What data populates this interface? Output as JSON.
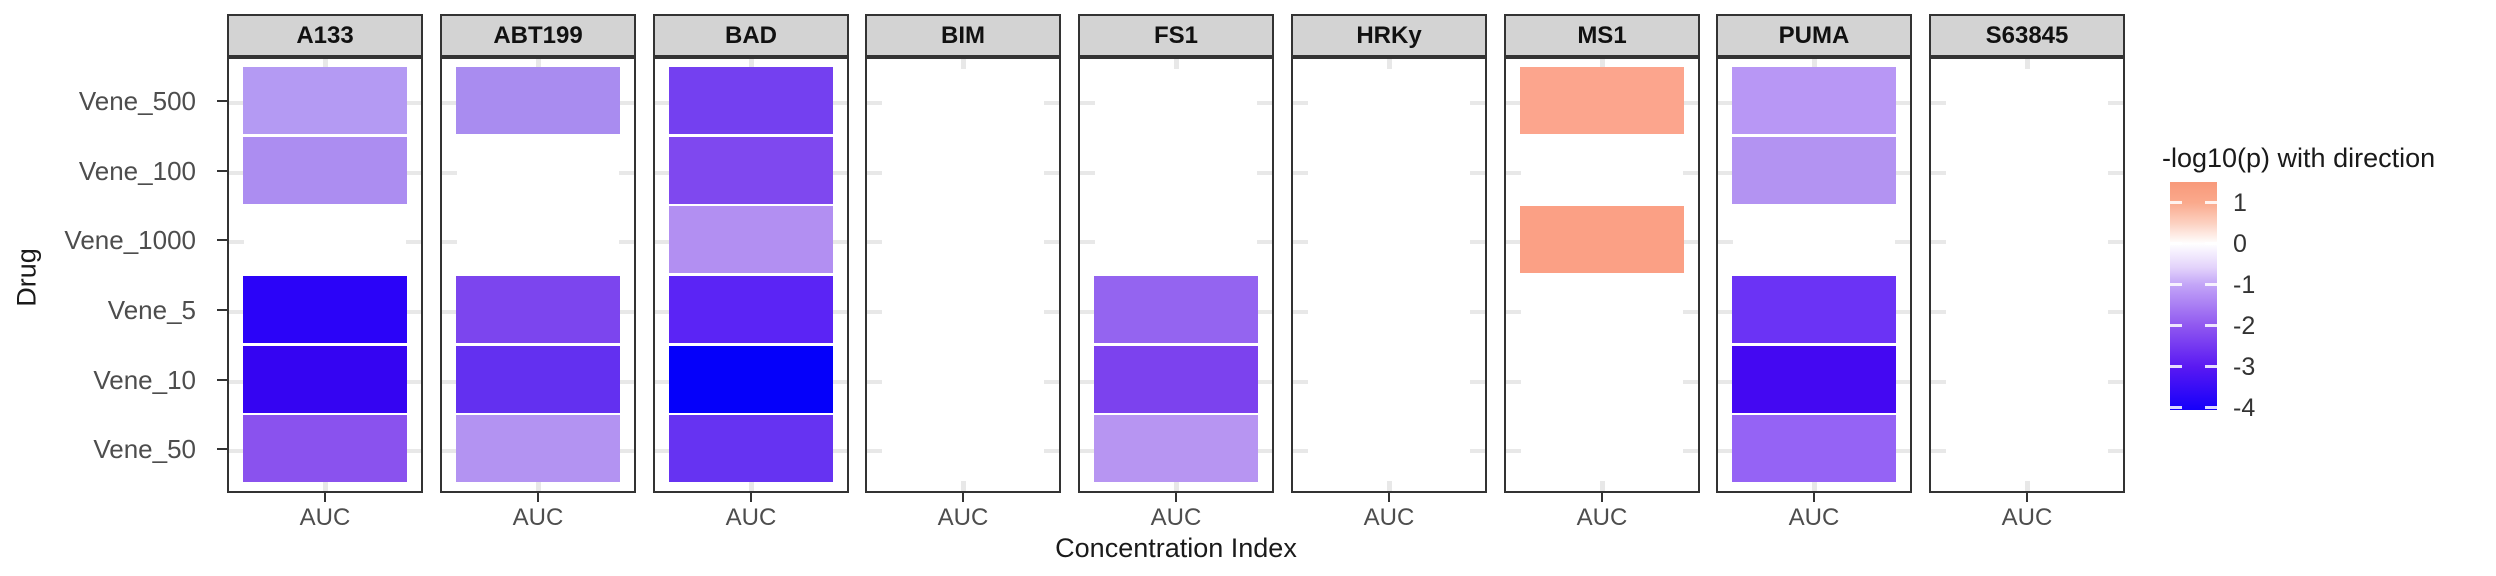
{
  "figure": {
    "background": "#FFFFFF",
    "panel_border_color": "#333333",
    "strip_bg": "#D3D3D3",
    "axis_text_color": "#4D4D4D",
    "grid_dash_color": "#E8E8E8",
    "tick_color": "#333333"
  },
  "chart_data": {
    "type": "heatmap",
    "title": "",
    "xlabel": "Concentration Index",
    "ylabel": "Drug",
    "x_categories": [
      "AUC"
    ],
    "y_categories": [
      "Vene_500",
      "Vene_100",
      "Vene_1000",
      "Vene_5",
      "Vene_10",
      "Vene_50"
    ],
    "grid": "edge-dashes-only",
    "facets": [
      {
        "name": "A133",
        "cells": {
          "Vene_500": {
            "value": -1.15,
            "color": "#B49AF3"
          },
          "Vene_100": {
            "value": -1.3,
            "color": "#AC8DF1"
          },
          "Vene_1000": null,
          "Vene_5": {
            "value": -3.75,
            "color": "#2B03F8"
          },
          "Vene_10": {
            "value": -3.6,
            "color": "#3504F2"
          },
          "Vene_50": {
            "value": -2.1,
            "color": "#8A52EE"
          }
        }
      },
      {
        "name": "ABT199",
        "cells": {
          "Vene_500": {
            "value": -1.35,
            "color": "#A98CF0"
          },
          "Vene_100": null,
          "Vene_1000": null,
          "Vene_5": {
            "value": -2.3,
            "color": "#7C45EE"
          },
          "Vene_10": {
            "value": -2.8,
            "color": "#6330F0"
          },
          "Vene_50": {
            "value": -1.2,
            "color": "#B393F2"
          }
        }
      },
      {
        "name": "BAD",
        "cells": {
          "Vene_500": {
            "value": -2.5,
            "color": "#7440F0"
          },
          "Vene_100": {
            "value": -2.4,
            "color": "#7F48EF"
          },
          "Vene_1000": {
            "value": -1.25,
            "color": "#B28FF2"
          },
          "Vene_5": {
            "value": -3.0,
            "color": "#5B24F5"
          },
          "Vene_10": {
            "value": -4.05,
            "color": "#0500FA"
          },
          "Vene_50": {
            "value": -2.85,
            "color": "#6633F2"
          }
        }
      },
      {
        "name": "BIM",
        "cells": {
          "Vene_500": null,
          "Vene_100": null,
          "Vene_1000": null,
          "Vene_5": null,
          "Vene_10": null,
          "Vene_50": null
        }
      },
      {
        "name": "FS1",
        "cells": {
          "Vene_500": null,
          "Vene_100": null,
          "Vene_1000": null,
          "Vene_5": {
            "value": -2.0,
            "color": "#9464F0"
          },
          "Vene_10": {
            "value": -2.4,
            "color": "#7C42EE"
          },
          "Vene_50": {
            "value": -1.1,
            "color": "#B795F2"
          }
        }
      },
      {
        "name": "HRKy",
        "cells": {
          "Vene_500": null,
          "Vene_100": null,
          "Vene_1000": null,
          "Vene_5": null,
          "Vene_10": null,
          "Vene_50": null
        }
      },
      {
        "name": "MS1",
        "cells": {
          "Vene_500": {
            "value": 0.95,
            "color": "#FCA58D"
          },
          "Vene_100": null,
          "Vene_1000": {
            "value": 1.0,
            "color": "#FBA085"
          },
          "Vene_5": null,
          "Vene_10": null,
          "Vene_50": null
        }
      },
      {
        "name": "PUMA",
        "cells": {
          "Vene_500": {
            "value": -1.1,
            "color": "#B897F5"
          },
          "Vene_100": {
            "value": -1.2,
            "color": "#B393F2"
          },
          "Vene_1000": null,
          "Vene_5": {
            "value": -2.8,
            "color": "#6B33F5"
          },
          "Vene_10": {
            "value": -3.5,
            "color": "#4408F2"
          },
          "Vene_50": {
            "value": -2.0,
            "color": "#9563F5"
          }
        }
      },
      {
        "name": "S63845",
        "cells": {
          "Vene_500": null,
          "Vene_100": null,
          "Vene_1000": null,
          "Vene_5": null,
          "Vene_10": null,
          "Vene_50": null
        }
      }
    ],
    "legend": {
      "title": "-log10(p) with direction",
      "ticks": [
        1,
        0,
        -1,
        -2,
        -3,
        -4
      ],
      "domain": [
        -4.05,
        1.5
      ],
      "position": "right",
      "gradient_stops": [
        {
          "pos": 0.0,
          "color": "#F8997A"
        },
        {
          "pos": 0.09,
          "color": "#FAA98C"
        },
        {
          "pos": 0.18,
          "color": "#FCD0C0"
        },
        {
          "pos": 0.27,
          "color": "#FFFFFF"
        },
        {
          "pos": 0.375,
          "color": "#E3D3FB"
        },
        {
          "pos": 0.45,
          "color": "#C3A5F7"
        },
        {
          "pos": 0.63,
          "color": "#9058F0"
        },
        {
          "pos": 0.81,
          "color": "#5A19F2"
        },
        {
          "pos": 1.0,
          "color": "#1500FA"
        }
      ]
    }
  }
}
